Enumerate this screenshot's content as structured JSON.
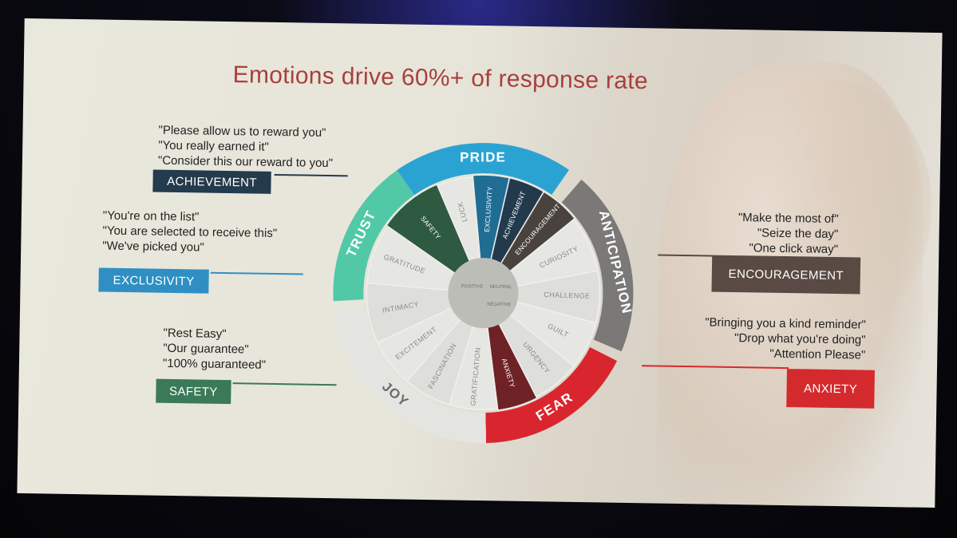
{
  "title": "Emotions drive 60%+ of response rate",
  "wheel": {
    "outer": {
      "pride": "PRIDE",
      "anticipation": "ANTICIPATION",
      "fear": "FEAR",
      "joy": "JOY",
      "trust": "TRUST"
    },
    "inner": {
      "luck": "LUCK",
      "exclusivity": "EXCLUSIVITY",
      "achievement": "ACHIEVEMENT",
      "encouragement": "ENCOURAGEMENT",
      "curiosity": "CURIOSITY",
      "challenge": "CHALLENGE",
      "guilt": "GUILT",
      "urgency": "URGENCY",
      "anxiety": "ANXIETY",
      "gratification": "GRATIFICATION",
      "fascination": "FASCINATION",
      "excitement": "EXCITEMENT",
      "intimacy": "INTIMACY",
      "gratitude": "GRATITUDE",
      "safety": "SAFETY"
    },
    "center": {
      "positive": "POSITIVE",
      "neutral": "NEUTRAL",
      "negative": "NEGATIVE"
    }
  },
  "callouts": {
    "achievement": {
      "quotes": [
        "\"Please allow us to reward you\"",
        "\"You really earned it\"",
        "\"Consider this our reward to you\""
      ],
      "tag": "ACHIEVEMENT"
    },
    "exclusivity": {
      "quotes": [
        "\"You're on the list\"",
        "\"You are selected to receive this\"",
        "\"We've picked you\""
      ],
      "tag": "EXCLUSIVITY"
    },
    "safety": {
      "quotes": [
        "\"Rest Easy\"",
        "\"Our guarantee\"",
        "\"100% guaranteed\""
      ],
      "tag": "SAFETY"
    },
    "encouragement": {
      "quotes": [
        "\"Make the most of\"",
        "\"Seize the day\"",
        "\"One click away\""
      ],
      "tag": "ENCOURAGEMENT"
    },
    "anxiety": {
      "quotes": [
        "\"Bringing you a kind reminder\"",
        "\"Drop what you're doing\"",
        "\"Attention Please\""
      ],
      "tag": "ANXIETY"
    }
  },
  "colors": {
    "pride": "#2aa3d3",
    "anticipation": "#7a7978",
    "fear": "#d9262e",
    "joy": "#e4e4e0",
    "trust": "#52c9a6",
    "achievement_tag": "#243a4d",
    "exclusivity_tag": "#2f8fc4",
    "safety_tag": "#3a7a58",
    "encouragement_tag": "#5a4a44",
    "anxiety_tag": "#d42a2d",
    "title": "#a8403c"
  }
}
